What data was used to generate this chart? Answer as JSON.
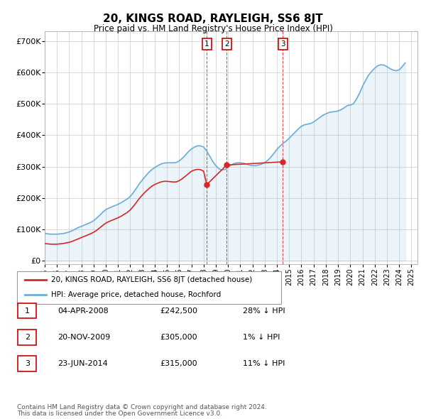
{
  "title": "20, KINGS ROAD, RAYLEIGH, SS6 8JT",
  "subtitle": "Price paid vs. HM Land Registry's House Price Index (HPI)",
  "yticks": [
    0,
    100000,
    200000,
    300000,
    400000,
    500000,
    600000,
    700000
  ],
  "ytick_labels": [
    "£0",
    "£100K",
    "£200K",
    "£300K",
    "£400K",
    "£500K",
    "£600K",
    "£700K"
  ],
  "xlim_start": 1995.0,
  "xlim_end": 2025.5,
  "ylim_min": -10000,
  "ylim_max": 730000,
  "hpi_color": "#6baed6",
  "price_color": "#d62728",
  "grid_color": "#cccccc",
  "legend_label_price": "20, KINGS ROAD, RAYLEIGH, SS6 8JT (detached house)",
  "legend_label_hpi": "HPI: Average price, detached house, Rochford",
  "transactions": [
    {
      "num": 1,
      "date": "04-APR-2008",
      "price": "242,500",
      "pct": "28%",
      "dir": "↓",
      "x": 2008.26
    },
    {
      "num": 2,
      "date": "20-NOV-2009",
      "price": "305,000",
      "pct": "1%",
      "dir": "↓",
      "x": 2009.89
    },
    {
      "num": 3,
      "date": "23-JUN-2014",
      "price": "315,000",
      "pct": "11%",
      "dir": "↓",
      "x": 2014.48
    }
  ],
  "hpi_data_x": [
    1995.0,
    1995.25,
    1995.5,
    1995.75,
    1996.0,
    1996.25,
    1996.5,
    1996.75,
    1997.0,
    1997.25,
    1997.5,
    1997.75,
    1998.0,
    1998.25,
    1998.5,
    1998.75,
    1999.0,
    1999.25,
    1999.5,
    1999.75,
    2000.0,
    2000.25,
    2000.5,
    2000.75,
    2001.0,
    2001.25,
    2001.5,
    2001.75,
    2002.0,
    2002.25,
    2002.5,
    2002.75,
    2003.0,
    2003.25,
    2003.5,
    2003.75,
    2004.0,
    2004.25,
    2004.5,
    2004.75,
    2005.0,
    2005.25,
    2005.5,
    2005.75,
    2006.0,
    2006.25,
    2006.5,
    2006.75,
    2007.0,
    2007.25,
    2007.5,
    2007.75,
    2008.0,
    2008.25,
    2008.5,
    2008.75,
    2009.0,
    2009.25,
    2009.5,
    2009.75,
    2010.0,
    2010.25,
    2010.5,
    2010.75,
    2011.0,
    2011.25,
    2011.5,
    2011.75,
    2012.0,
    2012.25,
    2012.5,
    2012.75,
    2013.0,
    2013.25,
    2013.5,
    2013.75,
    2014.0,
    2014.25,
    2014.5,
    2014.75,
    2015.0,
    2015.25,
    2015.5,
    2015.75,
    2016.0,
    2016.25,
    2016.5,
    2016.75,
    2017.0,
    2017.25,
    2017.5,
    2017.75,
    2018.0,
    2018.25,
    2018.5,
    2018.75,
    2019.0,
    2019.25,
    2019.5,
    2019.75,
    2020.0,
    2020.25,
    2020.5,
    2020.75,
    2021.0,
    2021.25,
    2021.5,
    2021.75,
    2022.0,
    2022.25,
    2022.5,
    2022.75,
    2023.0,
    2023.25,
    2023.5,
    2023.75,
    2024.0,
    2024.25,
    2024.5
  ],
  "hpi_data_y": [
    88000,
    86000,
    85000,
    85000,
    85000,
    86000,
    87000,
    89000,
    92000,
    96000,
    101000,
    106000,
    110000,
    114000,
    118000,
    122000,
    128000,
    136000,
    145000,
    155000,
    163000,
    168000,
    172000,
    176000,
    180000,
    185000,
    191000,
    197000,
    205000,
    217000,
    231000,
    246000,
    258000,
    270000,
    281000,
    290000,
    297000,
    303000,
    308000,
    311000,
    312000,
    312000,
    312000,
    313000,
    318000,
    326000,
    336000,
    347000,
    356000,
    362000,
    366000,
    366000,
    362000,
    350000,
    333000,
    316000,
    303000,
    293000,
    289000,
    291000,
    298000,
    305000,
    310000,
    312000,
    312000,
    311000,
    308000,
    305000,
    303000,
    303000,
    305000,
    308000,
    313000,
    320000,
    330000,
    342000,
    355000,
    365000,
    374000,
    381000,
    390000,
    400000,
    410000,
    420000,
    428000,
    433000,
    435000,
    437000,
    442000,
    449000,
    456000,
    463000,
    468000,
    472000,
    474000,
    475000,
    477000,
    481000,
    487000,
    494000,
    496000,
    500000,
    514000,
    533000,
    555000,
    574000,
    591000,
    603000,
    613000,
    621000,
    624000,
    623000,
    618000,
    612000,
    607000,
    605000,
    608000,
    618000,
    630000
  ],
  "price_data_x": [
    1995.0,
    1995.25,
    1995.5,
    1995.75,
    1996.0,
    1996.25,
    1996.5,
    1996.75,
    1997.0,
    1997.25,
    1997.5,
    1997.75,
    1998.0,
    1998.25,
    1998.5,
    1998.75,
    1999.0,
    1999.25,
    1999.5,
    1999.75,
    2000.0,
    2000.25,
    2000.5,
    2000.75,
    2001.0,
    2001.25,
    2001.5,
    2001.75,
    2002.0,
    2002.25,
    2002.5,
    2002.75,
    2003.0,
    2003.25,
    2003.5,
    2003.75,
    2004.0,
    2004.25,
    2004.5,
    2004.75,
    2005.0,
    2005.25,
    2005.5,
    2005.75,
    2006.0,
    2006.25,
    2006.5,
    2006.75,
    2007.0,
    2007.25,
    2007.5,
    2007.75,
    2008.0,
    2008.26,
    2009.89,
    2014.48
  ],
  "price_data_y": [
    55000,
    54000,
    53000,
    53000,
    53000,
    54000,
    55000,
    57000,
    59000,
    62000,
    66000,
    70000,
    74000,
    78000,
    82000,
    86000,
    91000,
    97000,
    105000,
    113000,
    120000,
    125000,
    129000,
    133000,
    137000,
    142000,
    148000,
    154000,
    162000,
    173000,
    186000,
    199000,
    210000,
    220000,
    229000,
    237000,
    243000,
    247000,
    251000,
    253000,
    253000,
    252000,
    251000,
    251000,
    255000,
    261000,
    269000,
    277000,
    285000,
    289000,
    291000,
    290000,
    285000,
    242500,
    305000,
    315000
  ],
  "footer_line1": "Contains HM Land Registry data © Crown copyright and database right 2024.",
  "footer_line2": "This data is licensed under the Open Government Licence v3.0."
}
